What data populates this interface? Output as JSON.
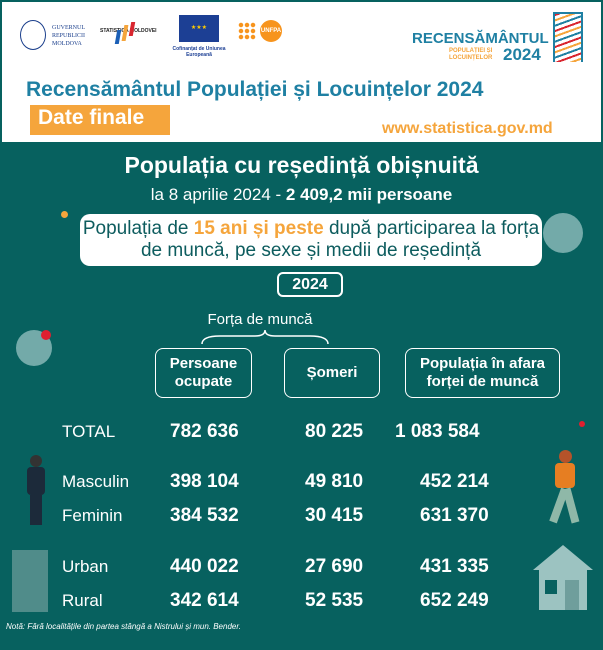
{
  "logos": {
    "gov": "GUVERNUL REPUBLICII MOLDOVA",
    "stat": "STATISTICA MOLDOVEI",
    "eu": "Cofinanțat de Uniunea Europeană",
    "unfpa": "UNFPA",
    "census_main": "RECENSĂMÂNTUL",
    "census_sub": "POPULAȚIEI ȘI LOCUINȚELOR",
    "census_year": "2024"
  },
  "header": {
    "title": "Recensământul Populației și Locuințelor 2024",
    "badge": "Date finale",
    "url": "www.statistica.gov.md"
  },
  "headline": {
    "title": "Populația cu reședință obișnuită",
    "subtitle_pre": "la 8 aprilie 2024 - ",
    "subtitle_value": "2 409,2 mii persoane"
  },
  "box": {
    "pre": "Populația de ",
    "highlight": "15 ani și peste",
    "post": " după participarea la forța de muncă, pe sexe și medii de reședință"
  },
  "year": "2024",
  "table": {
    "group_header": "Forța de muncă",
    "columns": [
      "Persoane ocupate",
      "Șomeri",
      "Populația în afara forței de muncă"
    ],
    "rows": [
      {
        "label": "TOTAL",
        "values": [
          "782 636",
          "80 225",
          "1 083 584"
        ]
      },
      {
        "label": "Masculin",
        "values": [
          "398 104",
          "49 810",
          "452 214"
        ]
      },
      {
        "label": "Feminin",
        "values": [
          "384 532",
          "30 415",
          "631 370"
        ]
      },
      {
        "label": "Urban",
        "values": [
          "440 022",
          "27 690",
          "431 335"
        ]
      },
      {
        "label": "Rural",
        "values": [
          "342 614",
          "52 535",
          "652 249"
        ]
      }
    ]
  },
  "note": "Notă: Fără localitățile din partea stângă a Nistrului și mun. Bender.",
  "colors": {
    "background": "#07615f",
    "accent": "#f5a53c",
    "title": "#1f80a3"
  }
}
